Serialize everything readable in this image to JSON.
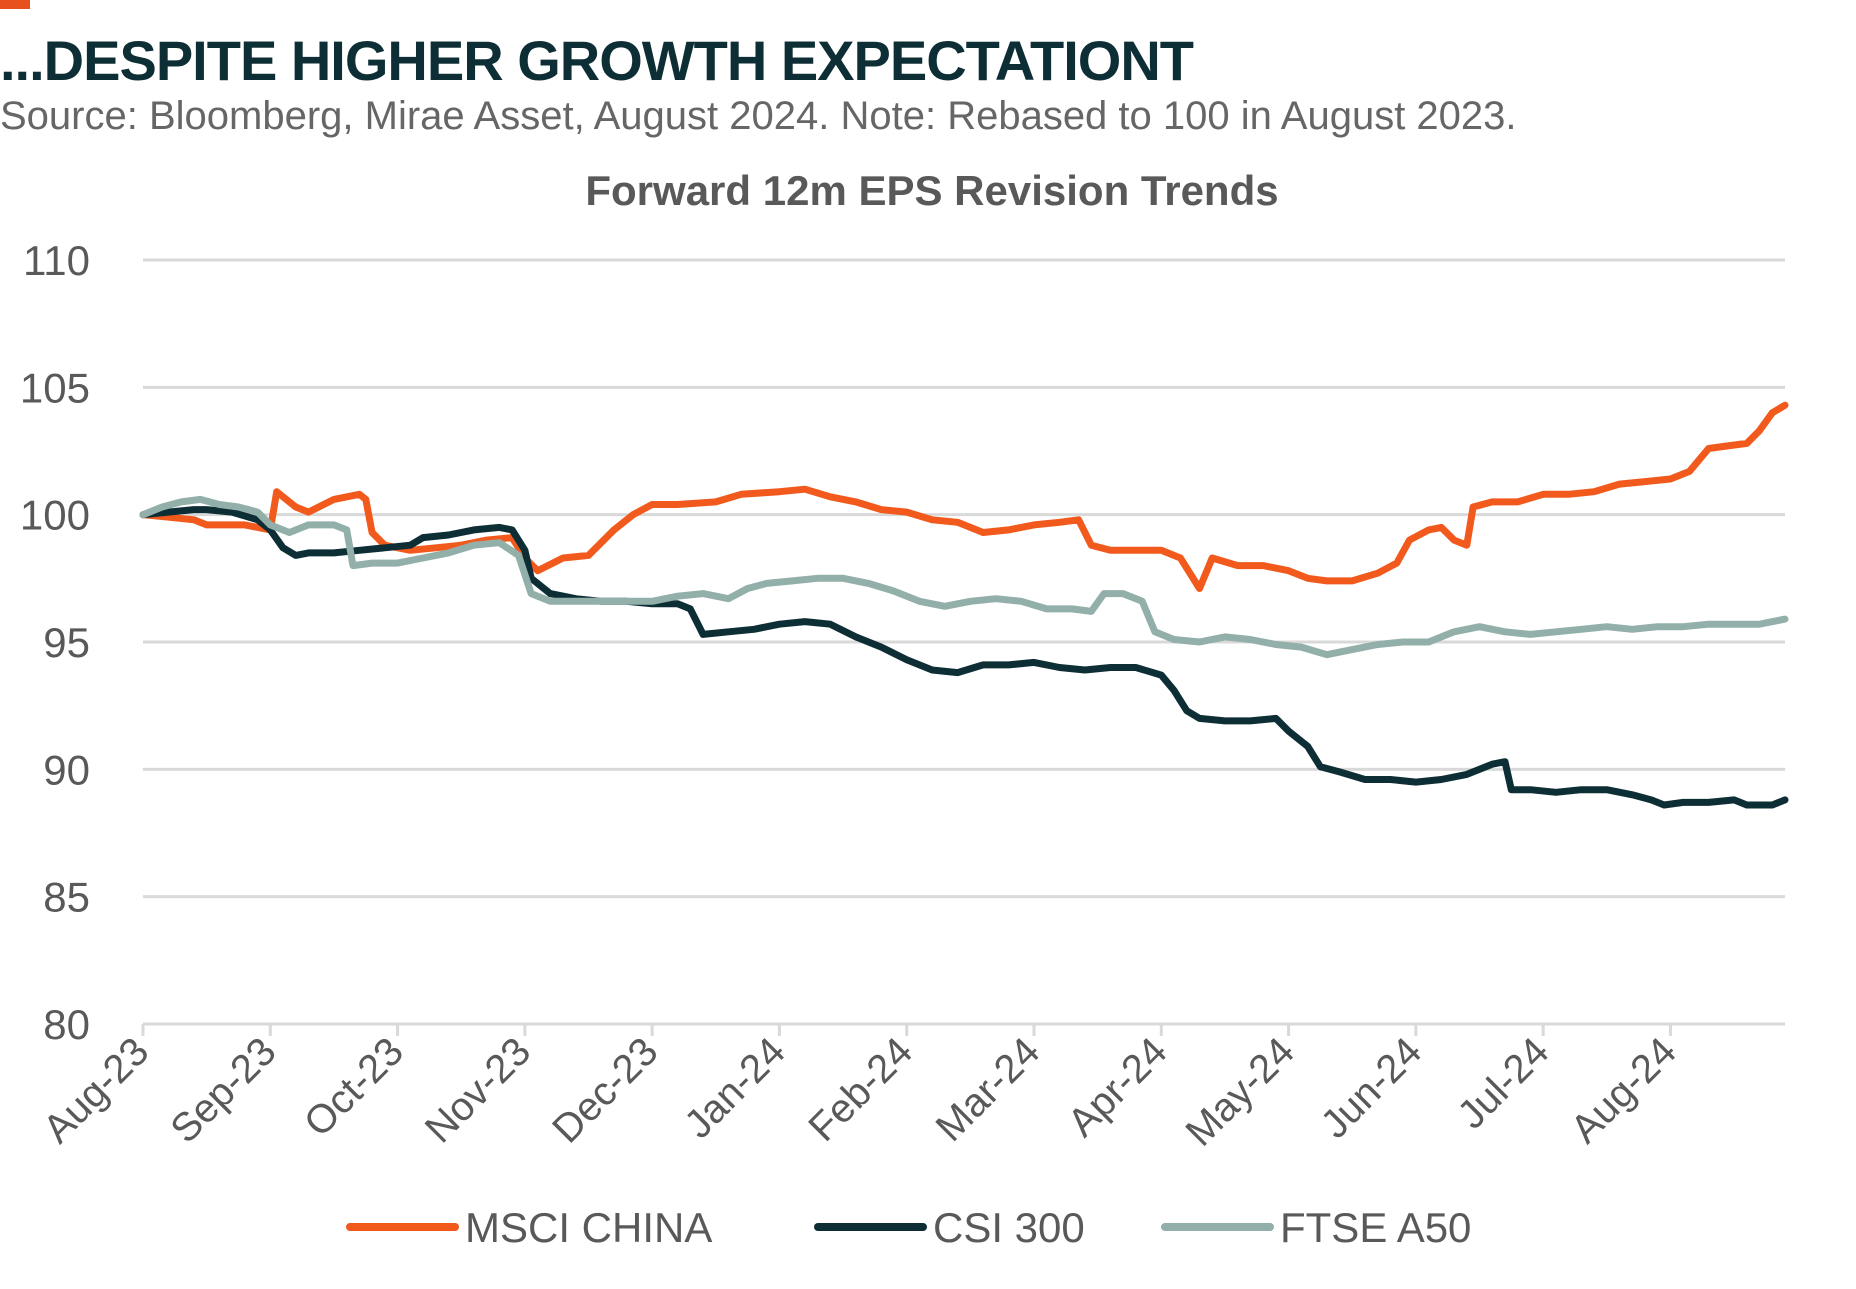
{
  "header": {
    "headline": "...DESPITE HIGHER GROWTH EXPECTATIONT",
    "source_note": "Source: Bloomberg, Mirae Asset, August 2024. Note: Rebased to 100 in August 2023."
  },
  "colors": {
    "accent": "#E8501E",
    "headline": "#0E2E36",
    "msci_china": "#F25A1D",
    "csi_300": "#0E2E36",
    "ftse_a50": "#92AFAA",
    "grid": "#D9D9D9",
    "axis_text": "#595959"
  },
  "chart_data": {
    "type": "line",
    "title": "Forward 12m EPS Revision Trends",
    "x_ticks": [
      "Aug-23",
      "Sep-23",
      "Oct-23",
      "Nov-23",
      "Dec-23",
      "Jan-24",
      "Feb-24",
      "Mar-24",
      "Apr-24",
      "May-24",
      "Jun-24",
      "Jul-24",
      "Aug-24"
    ],
    "x_range": [
      0,
      12.9
    ],
    "ylim": [
      80,
      110
    ],
    "y_ticks": [
      80,
      85,
      90,
      95,
      100,
      105,
      110
    ],
    "grid": "horizontal",
    "legend_position": "bottom",
    "series": [
      {
        "name": "MSCI CHINA",
        "color_key": "msci_china",
        "points": [
          [
            0,
            100
          ],
          [
            0.2,
            99.9
          ],
          [
            0.4,
            99.8
          ],
          [
            0.5,
            99.6
          ],
          [
            0.8,
            99.6
          ],
          [
            1.0,
            99.4
          ],
          [
            1.05,
            100.9
          ],
          [
            1.2,
            100.3
          ],
          [
            1.3,
            100.1
          ],
          [
            1.5,
            100.6
          ],
          [
            1.7,
            100.8
          ],
          [
            1.75,
            100.6
          ],
          [
            1.8,
            99.3
          ],
          [
            1.9,
            98.8
          ],
          [
            2.1,
            98.6
          ],
          [
            2.3,
            98.7
          ],
          [
            2.5,
            98.8
          ],
          [
            2.7,
            99.0
          ],
          [
            2.9,
            99.1
          ],
          [
            3.0,
            98.3
          ],
          [
            3.1,
            97.8
          ],
          [
            3.3,
            98.3
          ],
          [
            3.5,
            98.4
          ],
          [
            3.7,
            99.4
          ],
          [
            3.85,
            100.0
          ],
          [
            4.0,
            100.4
          ],
          [
            4.2,
            100.4
          ],
          [
            4.5,
            100.5
          ],
          [
            4.7,
            100.8
          ],
          [
            5.0,
            100.9
          ],
          [
            5.2,
            101.0
          ],
          [
            5.4,
            100.7
          ],
          [
            5.6,
            100.5
          ],
          [
            5.8,
            100.2
          ],
          [
            6.0,
            100.1
          ],
          [
            6.2,
            99.8
          ],
          [
            6.4,
            99.7
          ],
          [
            6.6,
            99.3
          ],
          [
            6.8,
            99.4
          ],
          [
            7.0,
            99.6
          ],
          [
            7.2,
            99.7
          ],
          [
            7.35,
            99.8
          ],
          [
            7.45,
            98.8
          ],
          [
            7.6,
            98.6
          ],
          [
            7.8,
            98.6
          ],
          [
            8.0,
            98.6
          ],
          [
            8.15,
            98.3
          ],
          [
            8.3,
            97.1
          ],
          [
            8.4,
            98.3
          ],
          [
            8.6,
            98.0
          ],
          [
            8.8,
            98.0
          ],
          [
            9.0,
            97.8
          ],
          [
            9.15,
            97.5
          ],
          [
            9.3,
            97.4
          ],
          [
            9.5,
            97.4
          ],
          [
            9.7,
            97.7
          ],
          [
            9.85,
            98.1
          ],
          [
            9.95,
            99.0
          ],
          [
            10.1,
            99.4
          ],
          [
            10.2,
            99.5
          ],
          [
            10.3,
            99.0
          ],
          [
            10.4,
            98.8
          ],
          [
            10.45,
            100.3
          ],
          [
            10.6,
            100.5
          ],
          [
            10.8,
            100.5
          ],
          [
            11.0,
            100.8
          ],
          [
            11.2,
            100.8
          ],
          [
            11.4,
            100.9
          ],
          [
            11.6,
            101.2
          ],
          [
            11.8,
            101.3
          ],
          [
            12.0,
            101.4
          ],
          [
            12.15,
            101.7
          ],
          [
            12.3,
            102.6
          ],
          [
            12.45,
            102.7
          ],
          [
            12.6,
            102.8
          ],
          [
            12.7,
            103.3
          ],
          [
            12.8,
            104.0
          ],
          [
            12.9,
            104.3
          ]
        ]
      },
      {
        "name": "CSI 300",
        "color_key": "csi_300",
        "points": [
          [
            0,
            100
          ],
          [
            0.2,
            100.1
          ],
          [
            0.4,
            100.2
          ],
          [
            0.5,
            100.2
          ],
          [
            0.7,
            100.1
          ],
          [
            0.9,
            99.8
          ],
          [
            1.0,
            99.4
          ],
          [
            1.1,
            98.7
          ],
          [
            1.2,
            98.4
          ],
          [
            1.3,
            98.5
          ],
          [
            1.5,
            98.5
          ],
          [
            1.7,
            98.6
          ],
          [
            1.9,
            98.7
          ],
          [
            2.1,
            98.8
          ],
          [
            2.2,
            99.1
          ],
          [
            2.4,
            99.2
          ],
          [
            2.6,
            99.4
          ],
          [
            2.8,
            99.5
          ],
          [
            2.9,
            99.4
          ],
          [
            3.0,
            98.6
          ],
          [
            3.05,
            97.5
          ],
          [
            3.2,
            96.9
          ],
          [
            3.4,
            96.7
          ],
          [
            3.6,
            96.6
          ],
          [
            3.8,
            96.6
          ],
          [
            4.0,
            96.5
          ],
          [
            4.2,
            96.5
          ],
          [
            4.3,
            96.3
          ],
          [
            4.4,
            95.3
          ],
          [
            4.6,
            95.4
          ],
          [
            4.8,
            95.5
          ],
          [
            5.0,
            95.7
          ],
          [
            5.2,
            95.8
          ],
          [
            5.4,
            95.7
          ],
          [
            5.6,
            95.2
          ],
          [
            5.8,
            94.8
          ],
          [
            6.0,
            94.3
          ],
          [
            6.2,
            93.9
          ],
          [
            6.4,
            93.8
          ],
          [
            6.6,
            94.1
          ],
          [
            6.8,
            94.1
          ],
          [
            7.0,
            94.2
          ],
          [
            7.2,
            94.0
          ],
          [
            7.4,
            93.9
          ],
          [
            7.6,
            94.0
          ],
          [
            7.8,
            94.0
          ],
          [
            8.0,
            93.7
          ],
          [
            8.1,
            93.1
          ],
          [
            8.2,
            92.3
          ],
          [
            8.3,
            92.0
          ],
          [
            8.5,
            91.9
          ],
          [
            8.7,
            91.9
          ],
          [
            8.9,
            92.0
          ],
          [
            9.0,
            91.5
          ],
          [
            9.15,
            90.9
          ],
          [
            9.25,
            90.1
          ],
          [
            9.4,
            89.9
          ],
          [
            9.6,
            89.6
          ],
          [
            9.8,
            89.6
          ],
          [
            10.0,
            89.5
          ],
          [
            10.2,
            89.6
          ],
          [
            10.4,
            89.8
          ],
          [
            10.6,
            90.2
          ],
          [
            10.7,
            90.3
          ],
          [
            10.75,
            89.2
          ],
          [
            10.9,
            89.2
          ],
          [
            11.1,
            89.1
          ],
          [
            11.3,
            89.2
          ],
          [
            11.5,
            89.2
          ],
          [
            11.7,
            89.0
          ],
          [
            11.85,
            88.8
          ],
          [
            11.95,
            88.6
          ],
          [
            12.1,
            88.7
          ],
          [
            12.3,
            88.7
          ],
          [
            12.5,
            88.8
          ],
          [
            12.6,
            88.6
          ],
          [
            12.8,
            88.6
          ],
          [
            12.9,
            88.8
          ]
        ]
      },
      {
        "name": "FTSE A50",
        "color_key": "ftse_a50",
        "points": [
          [
            0,
            100
          ],
          [
            0.15,
            100.3
          ],
          [
            0.3,
            100.5
          ],
          [
            0.45,
            100.6
          ],
          [
            0.6,
            100.4
          ],
          [
            0.75,
            100.3
          ],
          [
            0.9,
            100.1
          ],
          [
            1.0,
            99.6
          ],
          [
            1.15,
            99.3
          ],
          [
            1.3,
            99.6
          ],
          [
            1.5,
            99.6
          ],
          [
            1.6,
            99.4
          ],
          [
            1.65,
            98.0
          ],
          [
            1.8,
            98.1
          ],
          [
            2.0,
            98.1
          ],
          [
            2.2,
            98.3
          ],
          [
            2.4,
            98.5
          ],
          [
            2.6,
            98.8
          ],
          [
            2.8,
            98.9
          ],
          [
            2.95,
            98.4
          ],
          [
            3.05,
            96.9
          ],
          [
            3.2,
            96.6
          ],
          [
            3.4,
            96.6
          ],
          [
            3.6,
            96.6
          ],
          [
            3.8,
            96.6
          ],
          [
            4.0,
            96.6
          ],
          [
            4.2,
            96.8
          ],
          [
            4.4,
            96.9
          ],
          [
            4.6,
            96.7
          ],
          [
            4.75,
            97.1
          ],
          [
            4.9,
            97.3
          ],
          [
            5.1,
            97.4
          ],
          [
            5.3,
            97.5
          ],
          [
            5.5,
            97.5
          ],
          [
            5.7,
            97.3
          ],
          [
            5.9,
            97.0
          ],
          [
            6.1,
            96.6
          ],
          [
            6.3,
            96.4
          ],
          [
            6.5,
            96.6
          ],
          [
            6.7,
            96.7
          ],
          [
            6.9,
            96.6
          ],
          [
            7.1,
            96.3
          ],
          [
            7.3,
            96.3
          ],
          [
            7.45,
            96.2
          ],
          [
            7.55,
            96.9
          ],
          [
            7.7,
            96.9
          ],
          [
            7.85,
            96.6
          ],
          [
            7.95,
            95.4
          ],
          [
            8.1,
            95.1
          ],
          [
            8.3,
            95.0
          ],
          [
            8.5,
            95.2
          ],
          [
            8.7,
            95.1
          ],
          [
            8.9,
            94.9
          ],
          [
            9.1,
            94.8
          ],
          [
            9.3,
            94.5
          ],
          [
            9.5,
            94.7
          ],
          [
            9.7,
            94.9
          ],
          [
            9.9,
            95.0
          ],
          [
            10.1,
            95.0
          ],
          [
            10.3,
            95.4
          ],
          [
            10.5,
            95.6
          ],
          [
            10.7,
            95.4
          ],
          [
            10.9,
            95.3
          ],
          [
            11.1,
            95.4
          ],
          [
            11.3,
            95.5
          ],
          [
            11.5,
            95.6
          ],
          [
            11.7,
            95.5
          ],
          [
            11.9,
            95.6
          ],
          [
            12.1,
            95.6
          ],
          [
            12.3,
            95.7
          ],
          [
            12.5,
            95.7
          ],
          [
            12.7,
            95.7
          ],
          [
            12.9,
            95.9
          ]
        ]
      }
    ]
  }
}
